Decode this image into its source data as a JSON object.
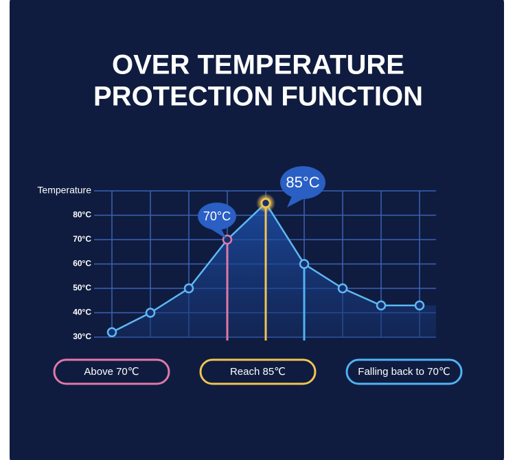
{
  "chart_data": {
    "type": "line",
    "title_lines": [
      "OVER TEMPERATURE",
      "PROTECTION FUNCTION"
    ],
    "y_label": "Temperature",
    "categories": [
      null,
      null,
      null,
      null,
      null,
      null,
      null,
      null,
      null
    ],
    "values": [
      32,
      40,
      50,
      70,
      85,
      60,
      50,
      43,
      43
    ],
    "color": "#5fb8f5",
    "ylim": [
      30,
      90
    ],
    "yticks": [
      {
        "value": 30,
        "label": "30°C"
      },
      {
        "value": 40,
        "label": "40°C"
      },
      {
        "value": 50,
        "label": "50°C"
      },
      {
        "value": 60,
        "label": "60°C"
      },
      {
        "value": 70,
        "label": "70°C"
      },
      {
        "value": 80,
        "label": "80°C"
      }
    ],
    "grid": true,
    "annotations": [
      {
        "text": "70°C",
        "color": "#e06ab0"
      },
      {
        "text": "85°C",
        "color": "#f2c451"
      }
    ],
    "stages": [
      {
        "label": "Above 70℃",
        "color": "#e07aa8"
      },
      {
        "label": "Reach 85℃",
        "color": "#f2c451"
      },
      {
        "label": "Falling back to 70℃",
        "color": "#4fb3f5"
      }
    ]
  }
}
